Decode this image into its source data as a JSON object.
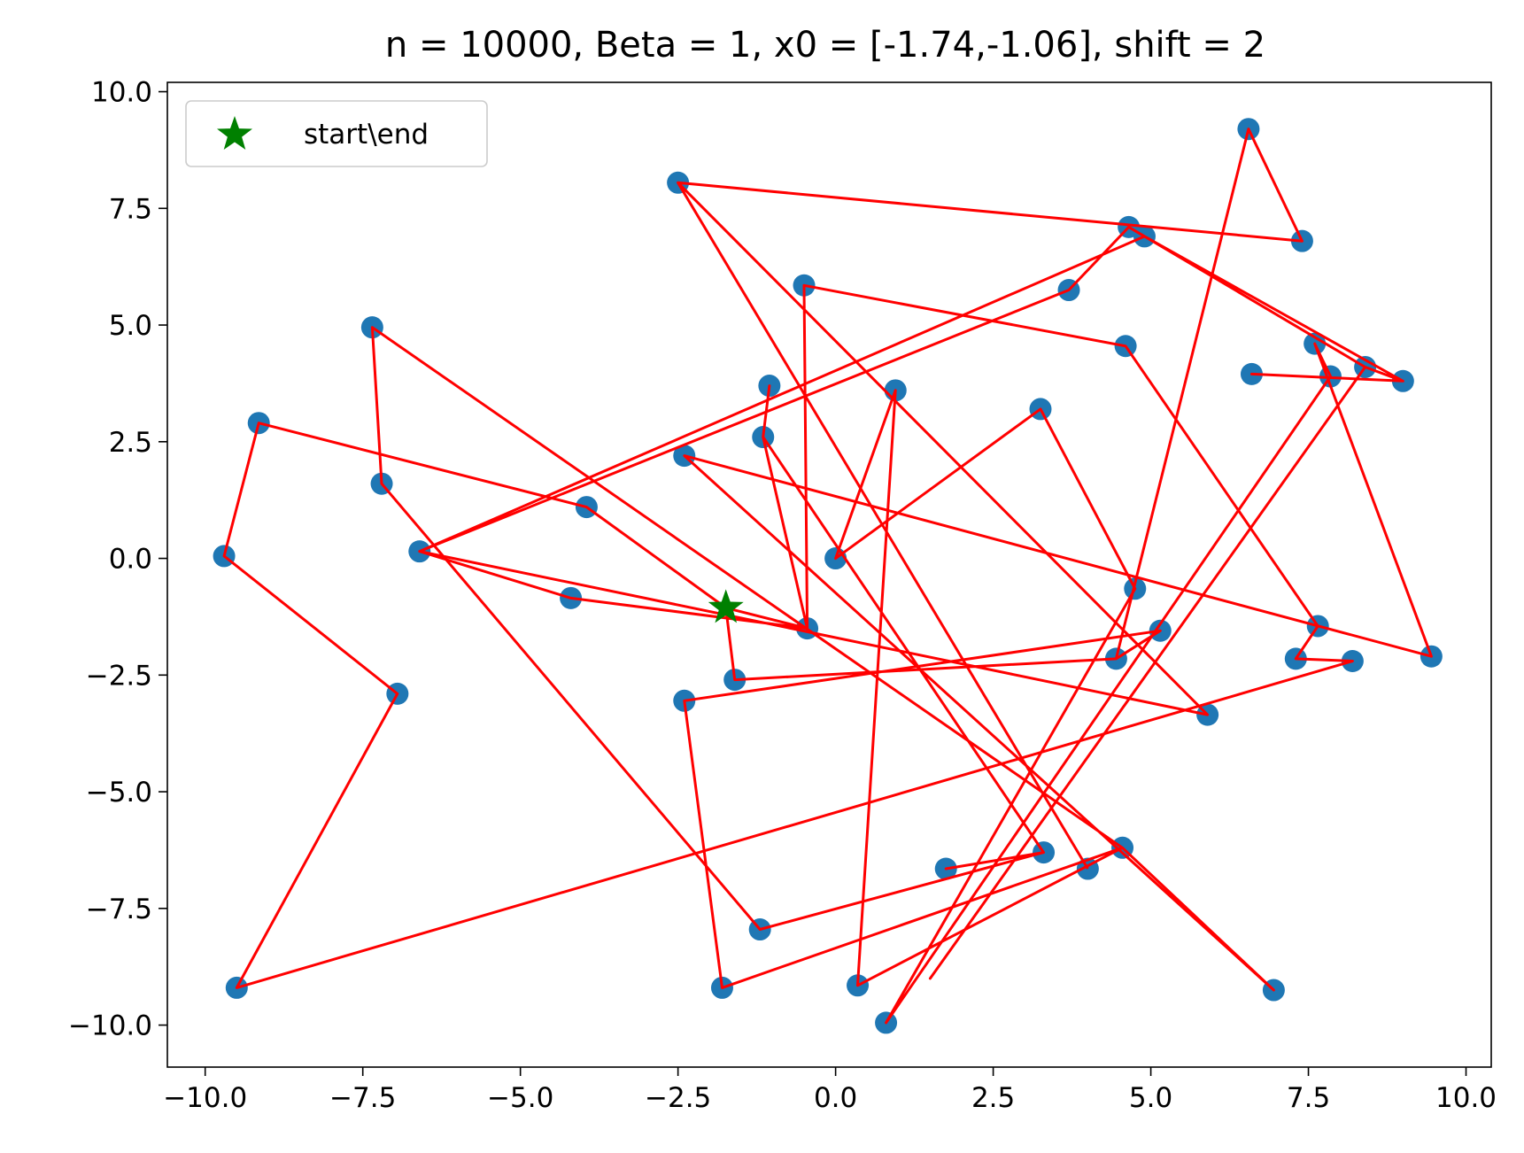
{
  "chart_data": {
    "type": "scatter",
    "title": "n = 10000, Beta = 1, x0 = [-1.74,-1.06], shift = 2",
    "xlabel": "",
    "ylabel": "",
    "xlim": [
      -10.6,
      10.4
    ],
    "ylim": [
      -10.9,
      10.2
    ],
    "xticks": [
      -10.0,
      -7.5,
      -5.0,
      -2.5,
      0.0,
      2.5,
      5.0,
      7.5,
      10.0
    ],
    "xtick_labels": [
      "−10.0",
      "−7.5",
      "−5.0",
      "−2.5",
      "0.0",
      "2.5",
      "5.0",
      "7.5",
      "10.0"
    ],
    "yticks": [
      10.0,
      7.5,
      5.0,
      2.5,
      0.0,
      -2.5,
      -5.0,
      -7.5,
      -10.0
    ],
    "ytick_labels": [
      "10.0",
      "7.5",
      "5.0",
      "2.5",
      "0.0",
      "−2.5",
      "−5.0",
      "−7.5",
      "−10.0"
    ],
    "grid": false,
    "legend": {
      "position": "top-left",
      "entries": [
        "start\\end"
      ]
    },
    "colors": {
      "points": "#1f77b4",
      "path": "#ff0000",
      "start_marker": "#008000"
    },
    "start_end": {
      "x": -1.74,
      "y": -1.06,
      "name": "start\\end"
    },
    "points": [
      [
        -9.7,
        0.05
      ],
      [
        -9.15,
        2.9
      ],
      [
        -9.5,
        -9.2
      ],
      [
        -6.95,
        -2.9
      ],
      [
        -7.35,
        4.95
      ],
      [
        -7.2,
        1.6
      ],
      [
        -6.6,
        0.15
      ],
      [
        -4.2,
        -0.85
      ],
      [
        -3.95,
        1.1
      ],
      [
        -2.5,
        8.05
      ],
      [
        -2.4,
        2.2
      ],
      [
        -2.4,
        -3.05
      ],
      [
        -1.8,
        -9.2
      ],
      [
        -1.6,
        -2.6
      ],
      [
        -1.2,
        -7.95
      ],
      [
        -1.15,
        2.6
      ],
      [
        -1.05,
        3.7
      ],
      [
        -0.5,
        5.85
      ],
      [
        -0.45,
        -1.5
      ],
      [
        0.0,
        0.0
      ],
      [
        0.35,
        -9.15
      ],
      [
        0.8,
        -9.95
      ],
      [
        0.95,
        3.6
      ],
      [
        1.75,
        -6.65
      ],
      [
        3.25,
        3.2
      ],
      [
        3.3,
        -6.3
      ],
      [
        3.7,
        5.75
      ],
      [
        4.0,
        -6.65
      ],
      [
        4.45,
        -2.15
      ],
      [
        4.6,
        4.55
      ],
      [
        4.55,
        -6.2
      ],
      [
        4.65,
        7.1
      ],
      [
        4.75,
        -0.65
      ],
      [
        4.9,
        6.9
      ],
      [
        5.15,
        -1.55
      ],
      [
        5.9,
        -3.35
      ],
      [
        6.55,
        9.2
      ],
      [
        6.6,
        3.95
      ],
      [
        6.95,
        -9.25
      ],
      [
        7.3,
        -2.15
      ],
      [
        7.4,
        6.8
      ],
      [
        7.6,
        4.6
      ],
      [
        7.65,
        -1.45
      ],
      [
        7.85,
        3.9
      ],
      [
        8.2,
        -2.2
      ],
      [
        8.4,
        4.1
      ],
      [
        9.0,
        3.8
      ],
      [
        9.45,
        -2.1
      ]
    ],
    "path": [
      [
        -1.74,
        -1.06
      ],
      [
        -0.45,
        -1.5
      ],
      [
        -0.5,
        5.85
      ],
      [
        4.6,
        4.55
      ],
      [
        7.65,
        -1.45
      ],
      [
        7.3,
        -2.15
      ],
      [
        8.2,
        -2.2
      ],
      [
        -9.5,
        -9.2
      ],
      [
        -6.95,
        -2.9
      ],
      [
        -9.7,
        0.05
      ],
      [
        -9.15,
        2.9
      ],
      [
        -3.95,
        1.1
      ],
      [
        -1.74,
        -1.06
      ],
      [
        -1.6,
        -2.6
      ],
      [
        4.45,
        -2.15
      ],
      [
        5.15,
        -1.55
      ],
      [
        -2.4,
        -3.05
      ],
      [
        -1.8,
        -9.2
      ],
      [
        4.55,
        -6.2
      ],
      [
        0.35,
        -9.15
      ],
      [
        0.95,
        3.6
      ],
      [
        0.0,
        0.0
      ],
      [
        3.25,
        3.2
      ],
      [
        4.75,
        -0.65
      ],
      [
        0.8,
        -9.95
      ],
      [
        7.85,
        3.9
      ],
      [
        7.6,
        4.6
      ],
      [
        9.45,
        -2.1
      ],
      [
        -2.4,
        2.2
      ],
      [
        6.95,
        -9.25
      ],
      [
        4.55,
        -6.2
      ],
      [
        -7.35,
        4.95
      ],
      [
        -7.2,
        1.6
      ],
      [
        -1.2,
        -7.95
      ],
      [
        3.3,
        -6.3
      ],
      [
        1.75,
        -6.65
      ],
      [
        3.3,
        -6.3
      ],
      [
        -1.15,
        2.6
      ],
      [
        -1.05,
        3.7
      ],
      [
        -1.15,
        2.6
      ],
      [
        -0.45,
        -1.5
      ],
      [
        -4.2,
        -0.85
      ],
      [
        -6.6,
        0.15
      ],
      [
        3.7,
        5.75
      ],
      [
        4.65,
        7.1
      ],
      [
        8.4,
        4.1
      ],
      [
        1.5,
        -9.0
      ],
      [
        8.4,
        4.1
      ],
      [
        4.65,
        7.1
      ],
      [
        4.9,
        6.9
      ],
      [
        9.0,
        3.8
      ],
      [
        6.6,
        3.95
      ],
      [
        9.0,
        3.8
      ],
      [
        8.4,
        4.1
      ],
      [
        4.9,
        6.9
      ],
      [
        -6.6,
        0.15
      ],
      [
        5.9,
        -3.35
      ],
      [
        -2.5,
        8.05
      ],
      [
        7.4,
        6.8
      ],
      [
        6.55,
        9.2
      ],
      [
        4.45,
        -2.15
      ],
      [
        6.55,
        9.2
      ],
      [
        7.4,
        6.8
      ],
      [
        -2.5,
        8.05
      ],
      [
        4.0,
        -6.65
      ]
    ]
  }
}
